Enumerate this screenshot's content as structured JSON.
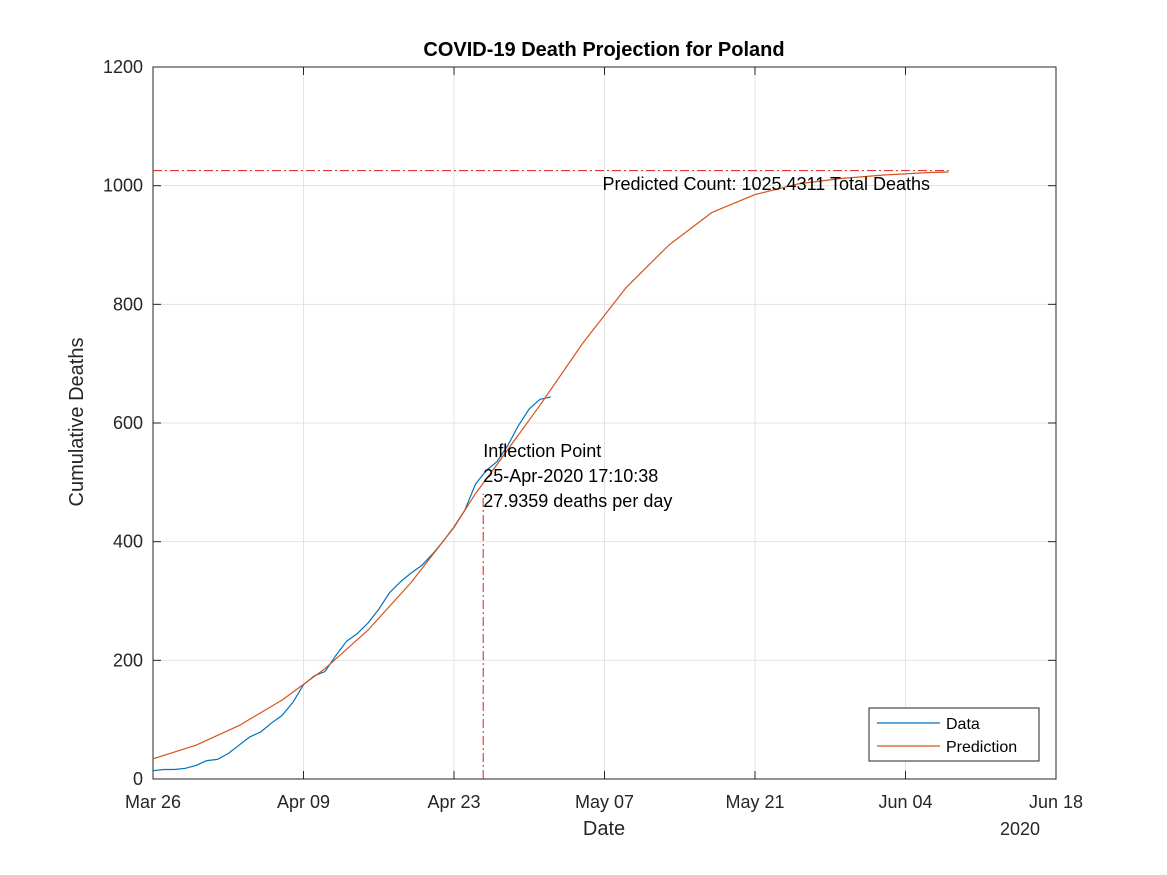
{
  "chart_data": {
    "type": "line",
    "title": "COVID-19 Death Projection for Poland",
    "xlabel": "Date",
    "ylabel": "Cumulative Deaths",
    "year_label": "2020",
    "grid": true,
    "legend_placement": "bottom-right",
    "xlim": [
      "2020-03-26",
      "2020-06-18"
    ],
    "ylim": [
      0,
      1200
    ],
    "x_ticks": [
      "Mar 26",
      "Apr 09",
      "Apr 23",
      "May 07",
      "May 21",
      "Jun 04",
      "Jun 18"
    ],
    "y_ticks": [
      0,
      200,
      400,
      600,
      800,
      1000,
      1200
    ],
    "series": [
      {
        "name": "Data",
        "color": "#0072BD",
        "x": [
          "2020-03-26",
          "2020-03-27",
          "2020-03-28",
          "2020-03-29",
          "2020-03-30",
          "2020-03-31",
          "2020-04-01",
          "2020-04-02",
          "2020-04-03",
          "2020-04-04",
          "2020-04-05",
          "2020-04-06",
          "2020-04-07",
          "2020-04-08",
          "2020-04-09",
          "2020-04-10",
          "2020-04-11",
          "2020-04-12",
          "2020-04-13",
          "2020-04-14",
          "2020-04-15",
          "2020-04-16",
          "2020-04-17",
          "2020-04-18",
          "2020-04-19",
          "2020-04-20",
          "2020-04-21",
          "2020-04-22",
          "2020-04-23",
          "2020-04-24",
          "2020-04-25",
          "2020-04-26",
          "2020-04-27",
          "2020-04-28",
          "2020-04-29",
          "2020-04-30",
          "2020-05-01",
          "2020-05-02"
        ],
        "y": [
          14,
          16,
          16,
          18,
          23,
          31,
          33,
          43,
          57,
          71,
          79,
          94,
          107,
          129,
          159,
          174,
          181,
          208,
          232,
          245,
          263,
          286,
          314,
          332,
          347,
          360,
          379,
          401,
          425,
          453,
          497,
          520,
          535,
          562,
          596,
          624,
          640,
          644
        ]
      },
      {
        "name": "Prediction",
        "color": "#D95319",
        "x": [
          "2020-03-26",
          "2020-03-30",
          "2020-04-03",
          "2020-04-07",
          "2020-04-11",
          "2020-04-15",
          "2020-04-19",
          "2020-04-23",
          "2020-04-25",
          "2020-04-27",
          "2020-05-01",
          "2020-05-05",
          "2020-05-09",
          "2020-05-13",
          "2020-05-17",
          "2020-05-21",
          "2020-05-25",
          "2020-05-29",
          "2020-06-02",
          "2020-06-06",
          "2020-06-08"
        ],
        "y": [
          34,
          57,
          90,
          133,
          186,
          251,
          331,
          424,
          481,
          530,
          630,
          735,
          828,
          900,
          955,
          985,
          1003,
          1012,
          1018,
          1022,
          1023
        ]
      }
    ],
    "inflection": {
      "date": "2020-04-25",
      "value": 481,
      "color": "#E01B1B",
      "label_lines": [
        "Inflection Point",
        "25-Apr-2020 17:10:38",
        "27.9359 deaths per day"
      ]
    },
    "asymptote": {
      "value": 1025.4311,
      "x_end": "2020-06-08",
      "color": "#E01B1B",
      "label": "Predicted Count: 1025.4311 Total Deaths"
    }
  }
}
